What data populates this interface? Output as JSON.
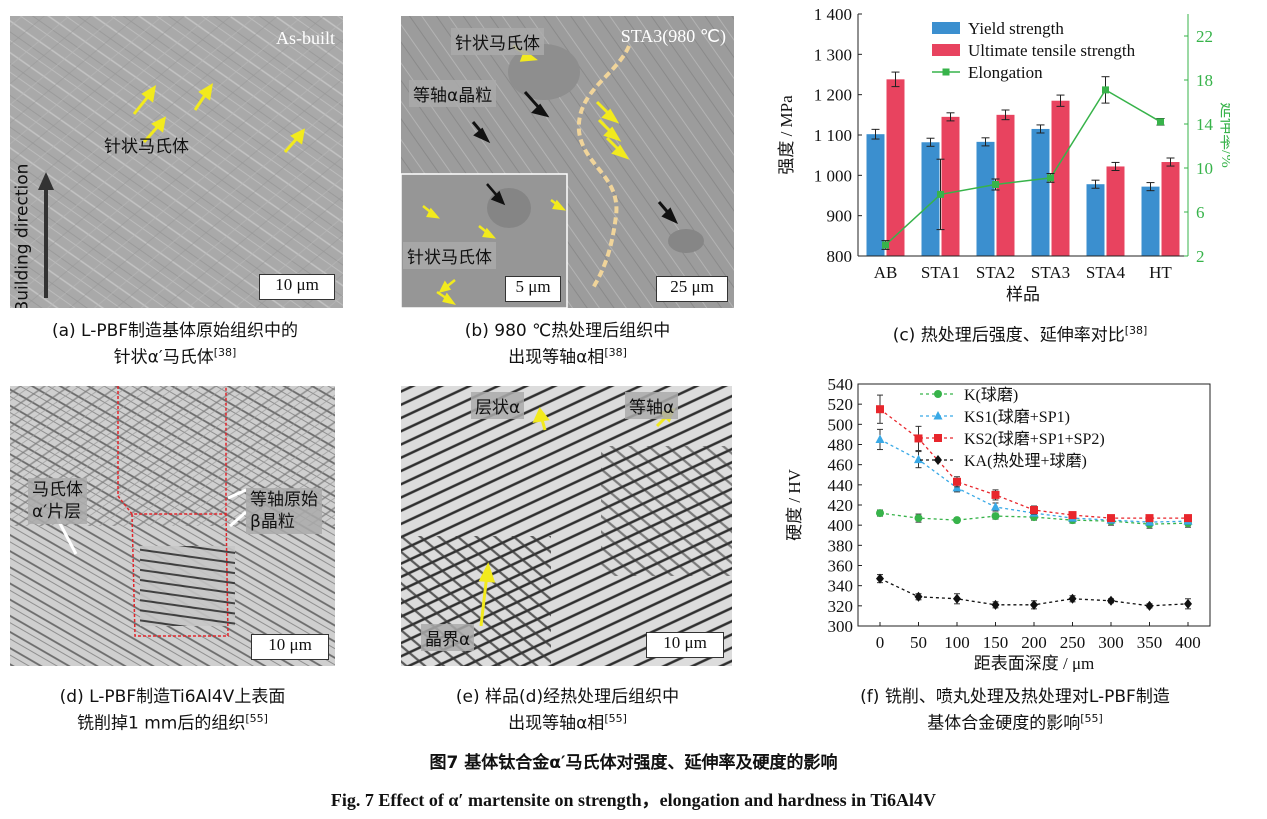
{
  "panels": {
    "a": {
      "corner_label": "As-built",
      "arrow_label": "针状马氏体",
      "side_label": "Building direction",
      "scale": "10 μm",
      "caption_line1": "(a)  L-PBF制造基体原始组织中的",
      "caption_line2": "针状α′马氏体",
      "caption_ref": "[38]"
    },
    "b": {
      "corner_label": "STA3(980 ℃)",
      "label_needle": "针状马氏体",
      "label_equiaxed": "等轴α晶粒",
      "inset_label": "针状马氏体",
      "inset_scale": "5 μm",
      "scale": "25 μm",
      "caption_line1": "(b)  980 ℃热处理后组织中",
      "caption_line2": "出现等轴α相",
      "caption_ref": "[38]"
    },
    "c": {
      "caption_line1": "(c)  热处理后强度、延伸率对比",
      "caption_ref": "[38]"
    },
    "d": {
      "label_martensite": "马氏体",
      "label_lamella": "α′片层",
      "label_prior_line1": "等轴原始",
      "label_prior_line2": "β晶粒",
      "scale": "10 μm",
      "caption_line1": "(d)  L-PBF制造Ti6Al4V上表面",
      "caption_line2": "铣削掉1 mm后的组织",
      "caption_ref": "[55]"
    },
    "e": {
      "label_lamellar": "层状α",
      "label_equiaxed": "等轴α",
      "label_boundary": "晶界α",
      "scale": "10 μm",
      "caption_line1": "(e)  样品(d)经热处理后组织中",
      "caption_line2": "出现等轴α相",
      "caption_ref": "[55]"
    },
    "f": {
      "caption_line1": "(f)  铣削、喷丸处理及热处理对L-PBF制造",
      "caption_line2": "基体合金硬度的影响",
      "caption_ref": "[55]"
    }
  },
  "figure_title_zh": "图7    基体钛合金α′马氏体对强度、延伸率及硬度的影响",
  "figure_title_en": "Fig. 7    Effect of α′ martensite on strength，elongation and hardness in Ti6Al4V",
  "colors": {
    "yield": "#3b8fcf",
    "uts": "#e8435f",
    "elongation": "#37b34a",
    "K": "#37b34a",
    "KS1": "#39a9e6",
    "KS2": "#e8262c",
    "KA": "#111111",
    "arrow_yellow": "#f2ea1d"
  },
  "chart_data": [
    {
      "type": "bar",
      "id": "c",
      "categories": [
        "AB",
        "STA1",
        "STA2",
        "STA3",
        "STA4",
        "HT"
      ],
      "xlabel": "样品",
      "ylabel": "强度 / MPa",
      "ylim": [
        800,
        1400
      ],
      "yticks": [
        "800",
        "900",
        "1 000",
        "1 100",
        "1 200",
        "1 300",
        "1 400"
      ],
      "y2label": "延伸率/%",
      "y2lim": [
        2,
        24
      ],
      "y2ticks": [
        "2",
        "6",
        "10",
        "14",
        "18",
        "22"
      ],
      "legend_position": "top-right",
      "series": [
        {
          "name": "Yield strength",
          "kind": "bar",
          "values": [
            1102,
            1082,
            1083,
            1115,
            978,
            972
          ],
          "errors": [
            12,
            10,
            10,
            10,
            10,
            10
          ]
        },
        {
          "name": "Ultimate tensile strength",
          "kind": "bar",
          "values": [
            1238,
            1145,
            1150,
            1185,
            1022,
            1033
          ],
          "errors": [
            18,
            10,
            12,
            14,
            10,
            10
          ]
        },
        {
          "name": "Elongation",
          "kind": "line",
          "axis": "right",
          "values": [
            3.0,
            7.6,
            8.5,
            9.1,
            17.1,
            14.2
          ],
          "errors": [
            0.4,
            3.2,
            0.5,
            0.4,
            1.2,
            0.3
          ]
        }
      ]
    },
    {
      "type": "line",
      "id": "f",
      "x": [
        0,
        50,
        100,
        150,
        200,
        250,
        300,
        350,
        400
      ],
      "xlabel": "距表面深度 / μm",
      "ylabel": "硬度 / HV",
      "ylim": [
        300,
        540
      ],
      "yticks": [
        300,
        320,
        340,
        360,
        380,
        400,
        420,
        440,
        460,
        480,
        500,
        520,
        540
      ],
      "legend_position": "top-right",
      "series": [
        {
          "name": "K(球磨)",
          "values": [
            412,
            407,
            405,
            409,
            408,
            405,
            404,
            401,
            402
          ],
          "errors": [
            3,
            4,
            2,
            3,
            3,
            3,
            4,
            4,
            4
          ]
        },
        {
          "name": "KS1(球磨+SP1)",
          "values": [
            485,
            465,
            437,
            418,
            412,
            407,
            405,
            403,
            404
          ],
          "errors": [
            10,
            8,
            4,
            4,
            3,
            3,
            3,
            3,
            3
          ]
        },
        {
          "name": "KS2(球磨+SP1+SP2)",
          "values": [
            515,
            486,
            443,
            430,
            415,
            410,
            407,
            407,
            407
          ],
          "errors": [
            14,
            12,
            5,
            5,
            4,
            3,
            3,
            3,
            3
          ]
        },
        {
          "name": "KA(热处理+球磨)",
          "values": [
            347,
            329,
            327,
            321,
            321,
            327,
            325,
            320,
            322
          ],
          "errors": [
            4,
            3,
            5,
            3,
            4,
            3,
            2,
            2,
            5
          ]
        }
      ]
    }
  ]
}
